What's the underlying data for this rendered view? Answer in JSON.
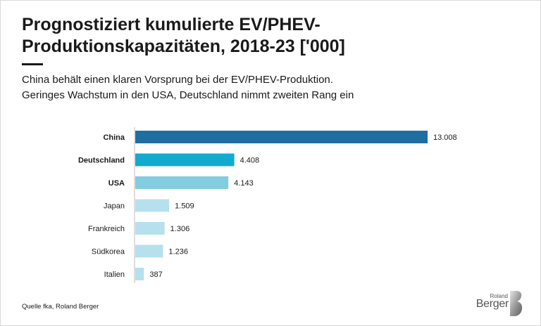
{
  "title": "Prognostiziert kumulierte EV/PHEV-Produktionskapazitäten, 2018-23 ['000]",
  "subtitle_line1": "China behält einen klaren Vorsprung bei der EV/PHEV-Produktion.",
  "subtitle_line2": "Geringes Wachstum in den USA, Deutschland nimmt zweiten Rang ein",
  "source": "Quelle fka, Roland Berger",
  "logo": {
    "line1": "Roland",
    "line2": "Berger",
    "icon": "roland-berger-b-icon"
  },
  "colors": {
    "top": "#1f6ea2",
    "second": "#12aacf",
    "third": "#82cde0",
    "rest": "#b6e0ee"
  },
  "chart_data": {
    "type": "bar",
    "orientation": "horizontal",
    "categories": [
      "China",
      "Deutschland",
      "USA",
      "Japan",
      "Frankreich",
      "Südkorea",
      "Italien"
    ],
    "values": [
      13008,
      4408,
      4143,
      1509,
      1306,
      1236,
      387
    ],
    "value_labels": [
      "13.008",
      "4.408",
      "4.143",
      "1.509",
      "1.306",
      "1.236",
      "387"
    ],
    "bold_categories": [
      "China",
      "Deutschland",
      "USA"
    ],
    "bar_colors": [
      "#1f6ea2",
      "#12aacf",
      "#82cde0",
      "#b6e0ee",
      "#b6e0ee",
      "#b6e0ee",
      "#b6e0ee"
    ],
    "xlim": [
      0,
      13008
    ],
    "grid": false,
    "legend": "none"
  }
}
